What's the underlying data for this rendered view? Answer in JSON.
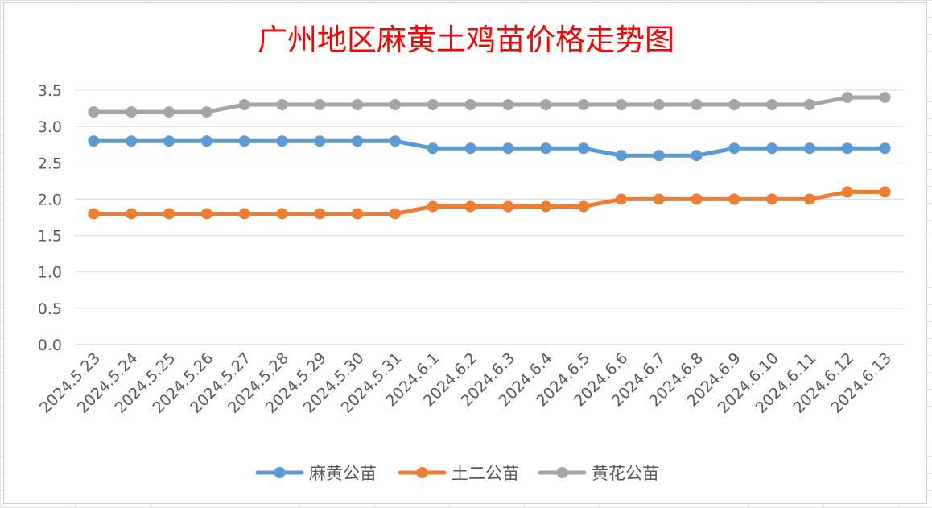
{
  "chart_data": {
    "type": "line",
    "title": "广州地区麻黄土鸡苗价格走势图",
    "title_color": "#ff0000",
    "categories": [
      "2024.5.23",
      "2024.5.24",
      "2024.5.25",
      "2024.5.26",
      "2024.5.27",
      "2024.5.28",
      "2024.5.29",
      "2024.5.30",
      "2024.5.31",
      "2024.6.1",
      "2024.6.2",
      "2024.6.3",
      "2024.6.4",
      "2024.6.5",
      "2024.6.6",
      "2024.6.7",
      "2024.6.8",
      "2024.6.9",
      "2024.6.10",
      "2024.6.11",
      "2024.6.12",
      "2024.6.13"
    ],
    "ylim": [
      0,
      3.5
    ],
    "yticks": [
      "0.0",
      "0.5",
      "1.0",
      "1.5",
      "2.0",
      "2.5",
      "3.0",
      "3.5"
    ],
    "grid": true,
    "legend_position": "bottom",
    "series": [
      {
        "name": "麻黄公苗",
        "color": "#5b9bd5",
        "values": [
          2.8,
          2.8,
          2.8,
          2.8,
          2.8,
          2.8,
          2.8,
          2.8,
          2.8,
          2.7,
          2.7,
          2.7,
          2.7,
          2.7,
          2.6,
          2.6,
          2.6,
          2.7,
          2.7,
          2.7,
          2.7,
          2.7
        ]
      },
      {
        "name": "土二公苗",
        "color": "#ed7d31",
        "values": [
          1.8,
          1.8,
          1.8,
          1.8,
          1.8,
          1.8,
          1.8,
          1.8,
          1.8,
          1.9,
          1.9,
          1.9,
          1.9,
          1.9,
          2.0,
          2.0,
          2.0,
          2.0,
          2.0,
          2.0,
          2.1,
          2.1
        ]
      },
      {
        "name": "黄花公苗",
        "color": "#a5a5a5",
        "values": [
          3.2,
          3.2,
          3.2,
          3.2,
          3.3,
          3.3,
          3.3,
          3.3,
          3.3,
          3.3,
          3.3,
          3.3,
          3.3,
          3.3,
          3.3,
          3.3,
          3.3,
          3.3,
          3.3,
          3.3,
          3.4,
          3.4
        ]
      }
    ]
  }
}
